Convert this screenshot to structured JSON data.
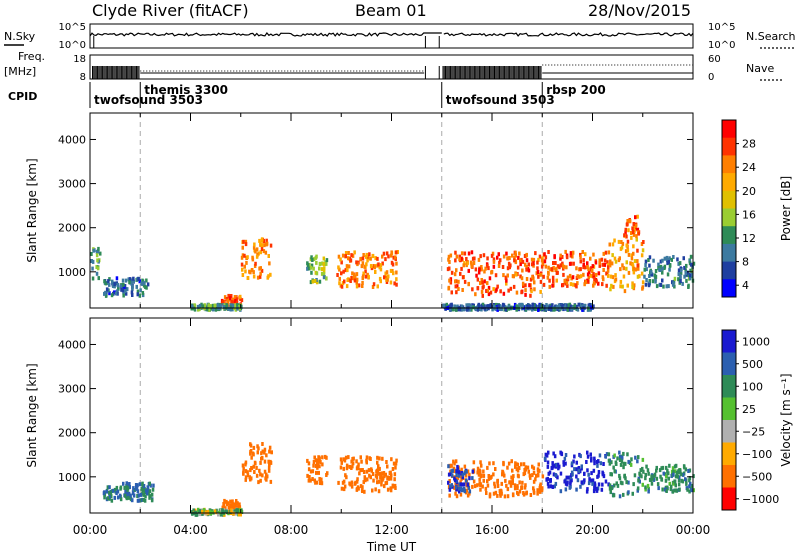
{
  "header": {
    "station": "Clyde River (fitACF)",
    "beam": "Beam 01",
    "date": "28/Nov/2015"
  },
  "top_panels": {
    "nsky_label": "N.Sky",
    "nsearch_label": "N.Search",
    "noise_ticks": [
      "10^5",
      "10^0"
    ],
    "noise_ticks_right": [
      "10^5",
      "10^0"
    ],
    "freq_label": "Freq.",
    "freq_unit": "[MHz]",
    "freq_ticks": [
      "18",
      "8"
    ],
    "nave_label": "Nave",
    "nave_ticks": [
      "60",
      "0"
    ],
    "cpid_label": "CPID"
  },
  "cpid_segments": [
    {
      "start_hour": 0.0,
      "label": "twofsound 3503",
      "row": 1
    },
    {
      "start_hour": 2.0,
      "label": "themis 3300",
      "row": 0
    },
    {
      "start_hour": 14.0,
      "label": "twofsound 3503",
      "row": 1
    },
    {
      "start_hour": 18.0,
      "label": "rbsp 200",
      "row": 0
    }
  ],
  "chart_data": [
    {
      "type": "heatmap",
      "quantity": "power",
      "ylabel": "Slant Range [km]",
      "xlabel": "",
      "ylim": [
        180,
        4600
      ],
      "xlim": [
        0,
        24
      ],
      "yticks": [
        1000,
        2000,
        3000,
        4000
      ],
      "colorbar_label": "Power [dB]",
      "colorbar_ticks": [
        "28",
        "24",
        "20",
        "16",
        "12",
        "8",
        "4"
      ],
      "colorbar_colors": [
        "#ff0000",
        "#ff3300",
        "#ff7f00",
        "#ffaa00",
        "#e0c000",
        "#9acd32",
        "#2e8b57",
        "#3c7aa0",
        "#1f3fa0",
        "#0000ff"
      ],
      "scatter_regions": [
        {
          "t0": 0.0,
          "t1": 0.4,
          "r0": 800,
          "r1": 1600,
          "v": 12
        },
        {
          "t0": 0.5,
          "t1": 2.3,
          "r0": 500,
          "r1": 900,
          "v": 8
        },
        {
          "t0": 5.2,
          "t1": 6.0,
          "r0": 250,
          "r1": 500,
          "v": 26
        },
        {
          "t0": 6.0,
          "t1": 7.2,
          "r0": 900,
          "r1": 1800,
          "v": 24
        },
        {
          "t0": 8.6,
          "t1": 9.4,
          "r0": 800,
          "r1": 1400,
          "v": 14
        },
        {
          "t0": 9.8,
          "t1": 12.2,
          "r0": 700,
          "r1": 1500,
          "v": 24
        },
        {
          "t0": 14.2,
          "t1": 18.0,
          "r0": 500,
          "r1": 1500,
          "v": 26
        },
        {
          "t0": 18.0,
          "t1": 20.6,
          "r0": 700,
          "r1": 1500,
          "v": 26
        },
        {
          "t0": 20.6,
          "t1": 22.0,
          "r0": 600,
          "r1": 1800,
          "v": 22
        },
        {
          "t0": 21.2,
          "t1": 21.8,
          "r0": 1800,
          "r1": 2300,
          "v": 26
        },
        {
          "t0": 22.0,
          "t1": 24.0,
          "r0": 700,
          "r1": 1400,
          "v": 10
        },
        {
          "t0": 4.0,
          "t1": 6.0,
          "r0": 180,
          "r1": 300,
          "v": 12
        },
        {
          "t0": 14.0,
          "t1": 20.0,
          "r0": 180,
          "r1": 300,
          "v": 8
        }
      ]
    },
    {
      "type": "heatmap",
      "quantity": "velocity",
      "ylabel": "Slant Range [km]",
      "xlabel": "Time UT",
      "ylim": [
        180,
        4600
      ],
      "xlim": [
        0,
        24
      ],
      "yticks": [
        1000,
        2000,
        3000,
        4000
      ],
      "xticks": [
        "00:00",
        "04:00",
        "08:00",
        "12:00",
        "16:00",
        "20:00",
        "00:00"
      ],
      "colorbar_label": "Velocity [m s⁻¹]",
      "colorbar_ticks": [
        "1000",
        "500",
        "100",
        "25",
        "−25",
        "−100",
        "−500",
        "−1000"
      ],
      "colorbar_colors": [
        "#1a1ad0",
        "#2b5fb0",
        "#2e8b57",
        "#55c030",
        "#b0b0b0",
        "#ffaa00",
        "#ff7000",
        "#ff0000"
      ],
      "scatter_regions": [
        {
          "t0": 0.5,
          "t1": 2.5,
          "r0": 500,
          "r1": 900,
          "v": 300
        },
        {
          "t0": 5.2,
          "t1": 6.0,
          "r0": 250,
          "r1": 500,
          "v": -200
        },
        {
          "t0": 6.0,
          "t1": 7.2,
          "r0": 900,
          "r1": 1800,
          "v": -300
        },
        {
          "t0": 9.8,
          "t1": 12.2,
          "r0": 700,
          "r1": 1500,
          "v": -400
        },
        {
          "t0": 14.2,
          "t1": 18.0,
          "r0": 600,
          "r1": 1400,
          "v": -300
        },
        {
          "t0": 14.2,
          "t1": 15.2,
          "r0": 700,
          "r1": 1300,
          "v": 800
        },
        {
          "t0": 18.0,
          "t1": 20.6,
          "r0": 700,
          "r1": 1600,
          "v": 900
        },
        {
          "t0": 20.6,
          "t1": 22.0,
          "r0": 600,
          "r1": 1600,
          "v": 200
        },
        {
          "t0": 22.0,
          "t1": 24.0,
          "r0": 700,
          "r1": 1300,
          "v": 200
        },
        {
          "t0": 8.6,
          "t1": 9.4,
          "r0": 900,
          "r1": 1500,
          "v": -200
        },
        {
          "t0": 4.0,
          "t1": 6.0,
          "r0": 180,
          "r1": 300,
          "v": 50
        }
      ]
    }
  ]
}
